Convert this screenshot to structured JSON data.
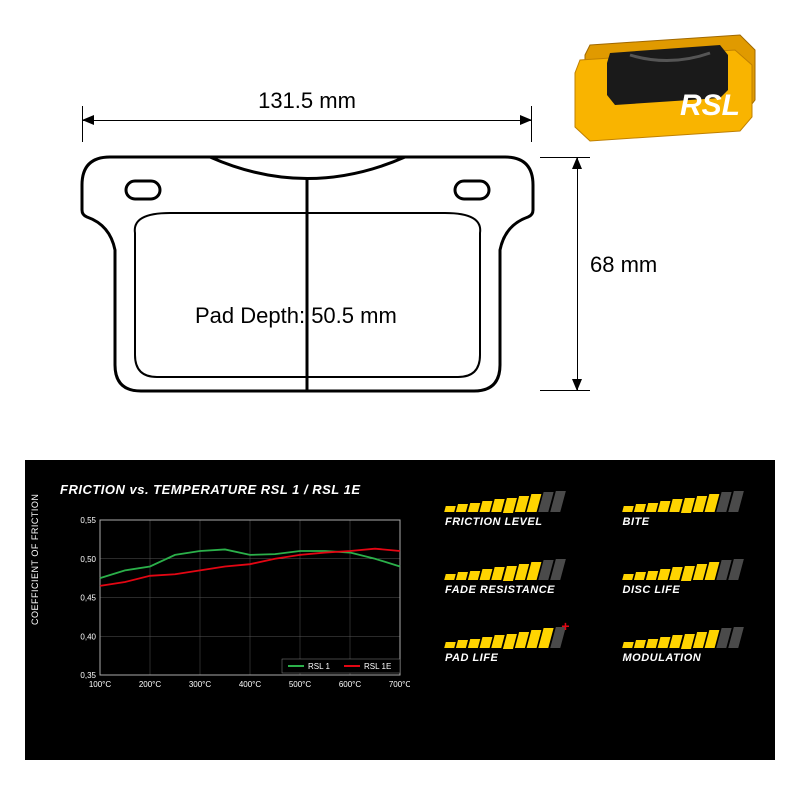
{
  "dimensions": {
    "width_label": "131.5 mm",
    "height_label": "68 mm",
    "depth_label": "Pad Depth: 50.5 mm"
  },
  "product": {
    "brand": "RSL",
    "body_color": "#f9b400",
    "friction_color": "#1a1a1a"
  },
  "chart": {
    "title": "FRICTION vs. TEMPERATURE RSL 1 / RSL 1E",
    "ylabel": "COEFFICIENT OF FRICTION",
    "y_ticks": [
      "0,55",
      "0,50",
      "0,45",
      "0,40",
      "0,35"
    ],
    "x_ticks": [
      "100°C",
      "200°C",
      "300°C",
      "400°C",
      "500°C",
      "600°C",
      "700°C"
    ],
    "ylim": [
      0.35,
      0.55
    ],
    "series": [
      {
        "name": "RSL 1",
        "color": "#2bb04a",
        "points": [
          [
            100,
            0.475
          ],
          [
            150,
            0.485
          ],
          [
            200,
            0.49
          ],
          [
            250,
            0.505
          ],
          [
            300,
            0.51
          ],
          [
            350,
            0.512
          ],
          [
            400,
            0.505
          ],
          [
            450,
            0.506
          ],
          [
            500,
            0.51
          ],
          [
            550,
            0.51
          ],
          [
            600,
            0.508
          ],
          [
            650,
            0.5
          ],
          [
            700,
            0.49
          ]
        ]
      },
      {
        "name": "RSL 1E",
        "color": "#e30613",
        "points": [
          [
            100,
            0.465
          ],
          [
            150,
            0.47
          ],
          [
            200,
            0.478
          ],
          [
            250,
            0.48
          ],
          [
            300,
            0.485
          ],
          [
            350,
            0.49
          ],
          [
            400,
            0.493
          ],
          [
            450,
            0.5
          ],
          [
            500,
            0.505
          ],
          [
            550,
            0.508
          ],
          [
            600,
            0.51
          ],
          [
            650,
            0.513
          ],
          [
            700,
            0.51
          ]
        ]
      }
    ],
    "grid_color": "#555555",
    "axis_color": "#aaaaaa",
    "tick_fontsize": 8
  },
  "ratings": {
    "bar_count": 10,
    "active_color": "#ffd400",
    "inactive_color": "#4a4a4a",
    "items": [
      {
        "label": "FRICTION LEVEL",
        "value": 8,
        "plus": false
      },
      {
        "label": "BITE",
        "value": 8,
        "plus": false
      },
      {
        "label": "FADE RESISTANCE",
        "value": 8,
        "plus": false
      },
      {
        "label": "DISC LIFE",
        "value": 8,
        "plus": false
      },
      {
        "label": "PAD LIFE",
        "value": 9,
        "plus": true
      },
      {
        "label": "MODULATION",
        "value": 8,
        "plus": false
      }
    ]
  }
}
